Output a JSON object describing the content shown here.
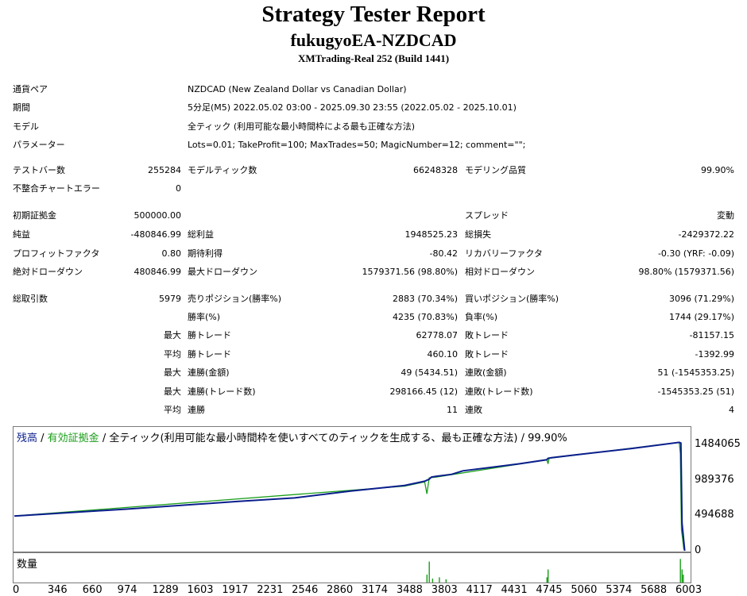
{
  "header": {
    "title": "Strategy Tester Report",
    "ea_name": "fukugyoEA-NZDCAD",
    "server": "XMTrading-Real 252 (Build 1441)"
  },
  "info": [
    {
      "label": "通貨ペア",
      "value": "NZDCAD (New Zealand Dollar vs Canadian Dollar)"
    },
    {
      "label": "期間",
      "value": "5分足(M5) 2022.05.02 03:00 - 2025.09.30 23:55 (2022.05.02 - 2025.10.01)"
    },
    {
      "label": "モデル",
      "value": "全ティック (利用可能な最小時間枠による最も正確な方法)"
    },
    {
      "label": "パラメーター",
      "value": "Lots=0.01; TakeProfit=100; MaxTrades=50; MagicNumber=12; comment=\"\";"
    }
  ],
  "stats": {
    "bars_label": "テストバー数",
    "bars": "255284",
    "ticks_label": "モデルティック数",
    "ticks": "66248328",
    "quality_label": "モデリング品質",
    "quality": "99.90%",
    "mismatch_label": "不整合チャートエラー",
    "mismatch": "0",
    "deposit_label": "初期証拠金",
    "deposit": "500000.00",
    "spread_label": "スプレッド",
    "spread": "変動",
    "net_label": "純益",
    "net": "-480846.99",
    "gross_profit_label": "総利益",
    "gross_profit": "1948525.23",
    "gross_loss_label": "総損失",
    "gross_loss": "-2429372.22",
    "pf_label": "プロフィットファクタ",
    "pf": "0.80",
    "expected_label": "期待利得",
    "expected": "-80.42",
    "recovery_label": "リカバリーファクタ",
    "recovery": "-0.30 (YRF: -0.09)",
    "abs_dd_label": "絶対ドローダウン",
    "abs_dd": "480846.99",
    "max_dd_label": "最大ドローダウン",
    "max_dd": "1579371.56 (98.80%)",
    "rel_dd_label": "相対ドローダウン",
    "rel_dd": "98.80% (1579371.56)",
    "total_trades_label": "総取引数",
    "total_trades": "5979",
    "short_label": "売りポジション(勝率%)",
    "short": "2883 (70.34%)",
    "long_label": "買いポジション(勝率%)",
    "long": "3096 (71.29%)",
    "winrate_label": "勝率(%)",
    "winrate": "4235 (70.83%)",
    "lossrate_label": "負率(%)",
    "lossrate": "1744 (29.17%)",
    "max_word": "最大",
    "avg_word": "平均",
    "win_trade_label": "勝トレード",
    "lose_trade_label": "敗トレード",
    "max_win": "62778.07",
    "max_loss": "-81157.15",
    "avg_win": "460.10",
    "avg_loss": "-1392.99",
    "cons_win_amt_label": "連勝(金額)",
    "cons_win_amt": "49 (5434.51)",
    "cons_loss_amt_label": "連敗(金額)",
    "cons_loss_amt": "51 (-1545353.25)",
    "cons_win_cnt_label": "連勝(トレード数)",
    "cons_win_cnt": "298166.45 (12)",
    "cons_loss_cnt_label": "連敗(トレード数)",
    "cons_loss_cnt": "-1545353.25 (51)",
    "avg_cons_win_label": "連勝",
    "avg_cons_win": "11",
    "avg_cons_loss_label": "連敗",
    "avg_cons_loss": "4"
  },
  "chart": {
    "legend_balance": "残高",
    "legend_sep": " / ",
    "legend_equity": "有効証拠金",
    "legend_rest": " / 全ティック(利用可能な最小時間枠を使いすべてのティックを生成する、最も正確な方法) / 99.90%",
    "volume_label": "数量",
    "colors": {
      "balance": "#0a1e8c",
      "equity": "#1a9e1a",
      "balance_text": "#0a1e8c",
      "equity_text": "#1a9e1a"
    }
  },
  "chart_data": {
    "type": "line",
    "yticks": [
      "1484065",
      "989376",
      "494688",
      "0"
    ],
    "ytick_values": [
      1484065,
      989376,
      494688,
      0
    ],
    "xticks": [
      "0",
      "346",
      "660",
      "974",
      "1289",
      "1603",
      "1917",
      "2231",
      "2546",
      "2860",
      "3174",
      "3488",
      "3803",
      "4117",
      "4431",
      "4745",
      "5060",
      "5374",
      "5688",
      "6003"
    ],
    "ylim": [
      0,
      1770000
    ],
    "xlim": [
      0,
      6010
    ],
    "series": [
      {
        "name": "残高",
        "x": [
          0,
          1000,
          2000,
          2500,
          3000,
          3480,
          3660,
          3700,
          3720,
          3760,
          3900,
          4000,
          4500,
          4750,
          4760,
          4790,
          5000,
          5500,
          5930,
          5945,
          5955,
          5979
        ],
        "y": [
          500000,
          600000,
          710000,
          760000,
          860000,
          940000,
          1000000,
          1030000,
          1060000,
          1070000,
          1100000,
          1150000,
          1250000,
          1310000,
          1330000,
          1340000,
          1380000,
          1470000,
          1560000,
          1550000,
          400000,
          0
        ]
      },
      {
        "name": "有効証拠金",
        "x": [
          0,
          3480,
          3660,
          3680,
          3700,
          3760,
          4750,
          4760,
          4770,
          5930,
          5940,
          5950,
          5960,
          5970,
          5979
        ],
        "y": [
          500000,
          930000,
          990000,
          820000,
          1050000,
          1060000,
          1310000,
          1250000,
          1330000,
          1560000,
          1400000,
          300000,
          180000,
          30000,
          0
        ]
      }
    ],
    "volume": {
      "x": [
        3680,
        3700,
        3730,
        3790,
        3850,
        4750,
        4760,
        5940,
        5955,
        5965
      ],
      "v": [
        0.3,
        0.8,
        0.15,
        0.2,
        0.12,
        0.2,
        0.5,
        0.9,
        0.5,
        0.3
      ]
    }
  }
}
